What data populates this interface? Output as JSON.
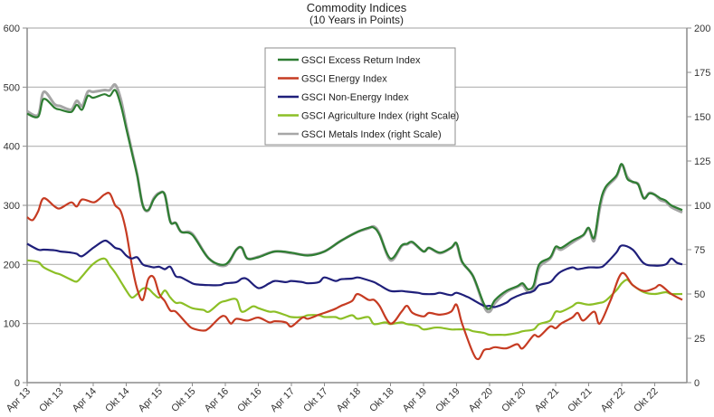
{
  "chart_data": {
    "type": "line",
    "title": "Commodity Indices",
    "subtitle": "(10 Years in Points)",
    "xlabel": "",
    "ylabel": "",
    "y_left": {
      "range": [
        0,
        600
      ],
      "ticks": [
        0,
        100,
        200,
        300,
        400,
        500,
        600
      ]
    },
    "y_right": {
      "range": [
        0,
        200
      ],
      "ticks": [
        0,
        25,
        50,
        75,
        100,
        125,
        150,
        175,
        200
      ]
    },
    "x_unit": "months since Apr 13",
    "x_range": [
      0,
      119
    ],
    "x_ticks": [
      {
        "m": 0,
        "label": "Apr 13"
      },
      {
        "m": 6,
        "label": "Okt 13"
      },
      {
        "m": 12,
        "label": "Apr 14"
      },
      {
        "m": 18,
        "label": "Okt 14"
      },
      {
        "m": 24,
        "label": "Apr 15"
      },
      {
        "m": 30,
        "label": "Okt 15"
      },
      {
        "m": 36,
        "label": "Apr 16"
      },
      {
        "m": 42,
        "label": "Okt 16"
      },
      {
        "m": 48,
        "label": "Apr 17"
      },
      {
        "m": 54,
        "label": "Okt 17"
      },
      {
        "m": 60,
        "label": "Apr 18"
      },
      {
        "m": 66,
        "label": "Okt 18"
      },
      {
        "m": 72,
        "label": "Apr 19"
      },
      {
        "m": 78,
        "label": "Okt 19"
      },
      {
        "m": 84,
        "label": "Apr 20"
      },
      {
        "m": 90,
        "label": "Okt 20"
      },
      {
        "m": 96,
        "label": "Apr 21"
      },
      {
        "m": 102,
        "label": "Okt 21"
      },
      {
        "m": 108,
        "label": "Apr 22"
      },
      {
        "m": 114,
        "label": "Okt 22"
      }
    ],
    "grid": true,
    "legend_position": "top-center",
    "series": [
      {
        "name": "GSCI Excess Return Index",
        "axis": "left",
        "color": "#2e7d32",
        "x": [
          0,
          2,
          3,
          5,
          6,
          8,
          9,
          10,
          11,
          12,
          14,
          15,
          16,
          17,
          18,
          19,
          20,
          21,
          22,
          23,
          24,
          25,
          26,
          27,
          28,
          30,
          33,
          36,
          38,
          39,
          40,
          42,
          45,
          48,
          51,
          54,
          57,
          60,
          62,
          63,
          64,
          66,
          68,
          69,
          70,
          72,
          73,
          75,
          77,
          78,
          79,
          81,
          83,
          84,
          85,
          87,
          89,
          90,
          91,
          92,
          93,
          95,
          96,
          97,
          99,
          101,
          102,
          103,
          104,
          105,
          107,
          108,
          109,
          110,
          111,
          112,
          113,
          114,
          115,
          116,
          117,
          119
        ],
        "values": [
          455,
          450,
          480,
          465,
          462,
          458,
          470,
          462,
          485,
          482,
          488,
          485,
          495,
          470,
          430,
          390,
          350,
          300,
          292,
          310,
          320,
          318,
          272,
          270,
          255,
          250,
          210,
          200,
          225,
          228,
          210,
          212,
          222,
          220,
          215,
          222,
          240,
          255,
          262,
          262,
          250,
          210,
          232,
          235,
          238,
          222,
          228,
          220,
          228,
          236,
          205,
          180,
          133,
          125,
          140,
          155,
          163,
          168,
          158,
          165,
          200,
          212,
          230,
          228,
          240,
          250,
          262,
          245,
          300,
          330,
          350,
          370,
          345,
          340,
          335,
          312,
          320,
          318,
          312,
          308,
          300,
          292
        ]
      },
      {
        "name": "GSCI Energy Index",
        "axis": "left",
        "color": "#c63b22",
        "x": [
          0,
          1,
          2,
          3,
          5,
          6,
          8,
          9,
          10,
          12,
          13,
          14,
          15,
          16,
          17,
          18,
          19,
          20,
          21,
          22,
          23,
          24,
          25,
          26,
          27,
          29,
          30,
          32,
          33,
          35,
          36,
          37,
          38,
          40,
          42,
          44,
          45,
          47,
          48,
          50,
          51,
          53,
          54,
          56,
          57,
          59,
          60,
          62,
          63,
          64,
          66,
          68,
          69,
          70,
          72,
          73,
          75,
          77,
          78,
          79,
          81,
          82,
          83,
          84,
          85,
          87,
          89,
          90,
          92,
          93,
          95,
          96,
          97,
          99,
          100,
          101,
          103,
          104,
          106,
          108,
          110,
          112,
          114,
          115,
          117,
          119
        ],
        "values": [
          280,
          275,
          290,
          312,
          298,
          295,
          305,
          298,
          310,
          305,
          310,
          318,
          320,
          300,
          290,
          255,
          200,
          158,
          140,
          175,
          178,
          150,
          138,
          122,
          120,
          100,
          92,
          88,
          92,
          110,
          112,
          100,
          108,
          105,
          110,
          102,
          104,
          102,
          95,
          110,
          108,
          115,
          118,
          125,
          130,
          138,
          150,
          140,
          140,
          130,
          100,
          120,
          130,
          118,
          112,
          118,
          115,
          120,
          132,
          100,
          50,
          40,
          55,
          57,
          60,
          58,
          65,
          58,
          80,
          78,
          95,
          92,
          100,
          110,
          118,
          105,
          120,
          100,
          140,
          185,
          165,
          155,
          160,
          165,
          150,
          140
        ]
      },
      {
        "name": "GSCI Non-Energy Index",
        "axis": "left",
        "color": "#1f1f7a",
        "x": [
          0,
          2,
          3,
          5,
          6,
          8,
          9,
          10,
          12,
          14,
          15,
          16,
          17,
          18,
          19,
          20,
          21,
          22,
          23,
          24,
          25,
          26,
          27,
          28,
          30,
          31,
          33,
          35,
          36,
          38,
          39,
          40,
          42,
          44,
          45,
          47,
          48,
          50,
          51,
          53,
          54,
          56,
          57,
          59,
          60,
          61,
          63,
          64,
          66,
          68,
          69,
          71,
          72,
          74,
          75,
          77,
          78,
          80,
          81,
          83,
          84,
          85,
          87,
          88,
          90,
          92,
          93,
          95,
          96,
          97,
          99,
          100,
          102,
          104,
          105,
          107,
          108,
          110,
          112,
          114,
          116,
          117,
          118,
          119
        ],
        "values": [
          235,
          225,
          225,
          224,
          222,
          220,
          218,
          214,
          228,
          240,
          236,
          228,
          225,
          215,
          210,
          212,
          200,
          197,
          195,
          196,
          192,
          196,
          180,
          178,
          168,
          166,
          165,
          165,
          168,
          170,
          176,
          175,
          160,
          168,
          172,
          170,
          172,
          170,
          168,
          170,
          178,
          172,
          175,
          176,
          178,
          176,
          170,
          165,
          155,
          155,
          154,
          152,
          150,
          150,
          152,
          148,
          152,
          145,
          140,
          130,
          130,
          128,
          135,
          142,
          150,
          155,
          165,
          170,
          180,
          188,
          195,
          192,
          195,
          195,
          200,
          220,
          232,
          225,
          202,
          198,
          200,
          210,
          203,
          200
        ]
      },
      {
        "name": "GSCI Agriculture Index (right Scale)",
        "axis": "right",
        "color": "#8cbf26",
        "x": [
          0,
          2,
          3,
          5,
          6,
          8,
          9,
          10,
          12,
          14,
          15,
          16,
          17,
          18,
          19,
          20,
          21,
          22,
          23,
          24,
          25,
          26,
          27,
          28,
          30,
          32,
          33,
          35,
          36,
          38,
          39,
          41,
          42,
          44,
          45,
          47,
          48,
          50,
          51,
          53,
          54,
          56,
          57,
          59,
          60,
          62,
          63,
          65,
          66,
          68,
          69,
          71,
          72,
          74,
          75,
          77,
          78,
          80,
          81,
          83,
          84,
          86,
          87,
          89,
          90,
          92,
          93,
          95,
          96,
          97,
          99,
          100,
          102,
          104,
          105,
          107,
          108,
          109,
          110,
          112,
          114,
          116,
          117,
          119
        ],
        "values": [
          69,
          68,
          65,
          62,
          61,
          58,
          57,
          60,
          67,
          70,
          66,
          62,
          57,
          52,
          48,
          50,
          53,
          53,
          50,
          48,
          52,
          48,
          45,
          45,
          42,
          41,
          40,
          45,
          46,
          47,
          40,
          43,
          42,
          40,
          40,
          38,
          37,
          37,
          38,
          38,
          37,
          37,
          36,
          38,
          36,
          37,
          33,
          34,
          33,
          34,
          33,
          32,
          30,
          31,
          31,
          30,
          30,
          30,
          29,
          28,
          27,
          27,
          27,
          28,
          29,
          30,
          33,
          35,
          40,
          40,
          43,
          45,
          44,
          45,
          46,
          52,
          56,
          58,
          55,
          51,
          50,
          51,
          50,
          50
        ]
      },
      {
        "name": "GSCI Metals Index (right Scale)",
        "axis": "right",
        "color": "#a6a6a6",
        "x": [
          0,
          2,
          3,
          5,
          6,
          8,
          9,
          10,
          11,
          12,
          14,
          15,
          16,
          17,
          18,
          19,
          20,
          21,
          22,
          23,
          24,
          25,
          26,
          27,
          28,
          30,
          33,
          36,
          38,
          39,
          40,
          42,
          45,
          48,
          51,
          54,
          57,
          60,
          62,
          63,
          64,
          66,
          68,
          69,
          70,
          72,
          73,
          75,
          77,
          78,
          79,
          81,
          83,
          84,
          85,
          87,
          89,
          90,
          91,
          92,
          93,
          95,
          96,
          97,
          99,
          101,
          102,
          103,
          104,
          105,
          107,
          108,
          109,
          110,
          111,
          112,
          113,
          114,
          115,
          116,
          117,
          119
        ],
        "values": [
          153,
          151,
          164,
          157,
          156,
          154,
          159,
          156,
          164,
          164,
          165,
          165,
          168,
          160,
          145,
          131,
          117,
          100,
          97,
          104,
          107,
          106,
          91,
          90,
          85,
          84,
          70,
          66,
          75,
          76,
          70,
          71,
          74,
          73,
          72,
          74,
          80,
          85,
          87,
          88,
          84,
          69,
          77,
          78,
          79,
          74,
          76,
          73,
          76,
          78,
          68,
          60,
          43,
          40,
          45,
          51,
          54,
          55,
          51,
          53,
          65,
          70,
          76,
          75,
          79,
          83,
          87,
          80,
          98,
          109,
          116,
          123,
          116,
          113,
          112,
          104,
          107,
          106,
          103,
          102,
          99,
          96
        ]
      }
    ]
  }
}
